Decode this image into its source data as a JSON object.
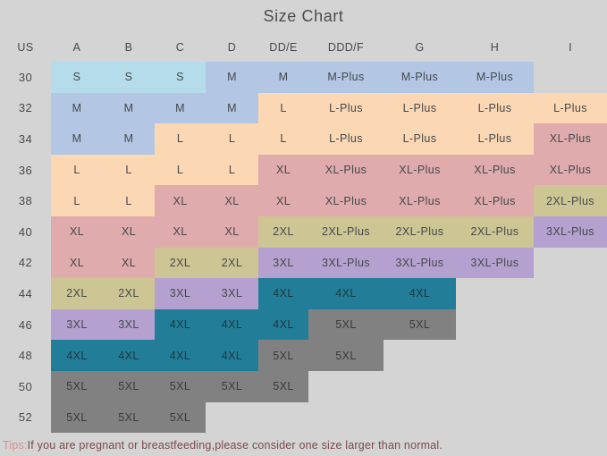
{
  "page": {
    "title": "Size Chart",
    "tips_label": "Tips:",
    "tips_text": "If you are pregnant or breastfeeding,please consider one size larger than normal."
  },
  "colors": {
    "background": "#d4d4d4",
    "text": "#46494b",
    "tips_label": "#d98f8f",
    "tips_text": "#7c4a4a",
    "text_on_teal": "#1e3740",
    "text_on_gray": "#3b3b3b"
  },
  "chart_data": {
    "type": "table",
    "title": "Size Chart",
    "columns": [
      "US",
      "A",
      "B",
      "C",
      "D",
      "DD/E",
      "DDD/F",
      "G",
      "H",
      "I"
    ],
    "rows": [
      {
        "us": "30",
        "cells": [
          "S",
          "S",
          "S",
          "M",
          "M",
          "M-Plus",
          "M-Plus",
          "M-Plus",
          ""
        ]
      },
      {
        "us": "32",
        "cells": [
          "M",
          "M",
          "M",
          "M",
          "L",
          "L-Plus",
          "L-Plus",
          "L-Plus",
          "L-Plus"
        ]
      },
      {
        "us": "34",
        "cells": [
          "M",
          "M",
          "L",
          "L",
          "L",
          "L-Plus",
          "L-Plus",
          "L-Plus",
          "XL-Plus"
        ]
      },
      {
        "us": "36",
        "cells": [
          "L",
          "L",
          "L",
          "L",
          "XL",
          "XL-Plus",
          "XL-Plus",
          "XL-Plus",
          "XL-Plus"
        ]
      },
      {
        "us": "38",
        "cells": [
          "L",
          "L",
          "XL",
          "XL",
          "XL",
          "XL-Plus",
          "XL-Plus",
          "XL-Plus",
          "2XL-Plus"
        ]
      },
      {
        "us": "40",
        "cells": [
          "XL",
          "XL",
          "XL",
          "XL",
          "2XL",
          "2XL-Plus",
          "2XL-Plus",
          "2XL-Plus",
          "3XL-Plus"
        ]
      },
      {
        "us": "42",
        "cells": [
          "XL",
          "XL",
          "2XL",
          "2XL",
          "3XL",
          "3XL-Plus",
          "3XL-Plus",
          "3XL-Plus",
          ""
        ]
      },
      {
        "us": "44",
        "cells": [
          "2XL",
          "2XL",
          "3XL",
          "3XL",
          "4XL",
          "4XL",
          "4XL",
          "",
          ""
        ]
      },
      {
        "us": "46",
        "cells": [
          "3XL",
          "3XL",
          "4XL",
          "4XL",
          "4XL",
          "5XL",
          "5XL",
          "",
          ""
        ]
      },
      {
        "us": "48",
        "cells": [
          "4XL",
          "4XL",
          "4XL",
          "4XL",
          "5XL",
          "5XL",
          "",
          "",
          ""
        ]
      },
      {
        "us": "50",
        "cells": [
          "5XL",
          "5XL",
          "5XL",
          "5XL",
          "5XL",
          "",
          "",
          "",
          ""
        ]
      },
      {
        "us": "52",
        "cells": [
          "5XL",
          "5XL",
          "5XL",
          "",
          "",
          "",
          "",
          "",
          ""
        ]
      }
    ],
    "color_map": {
      "S": "#b5dcea",
      "M": "#b3c6e3",
      "L": "#fbd7b4",
      "XL": "#dfabac",
      "2XL": "#cec594",
      "3XL": "#b4a1cf",
      "4XL": "#227e98",
      "5XL": "#818181"
    }
  }
}
